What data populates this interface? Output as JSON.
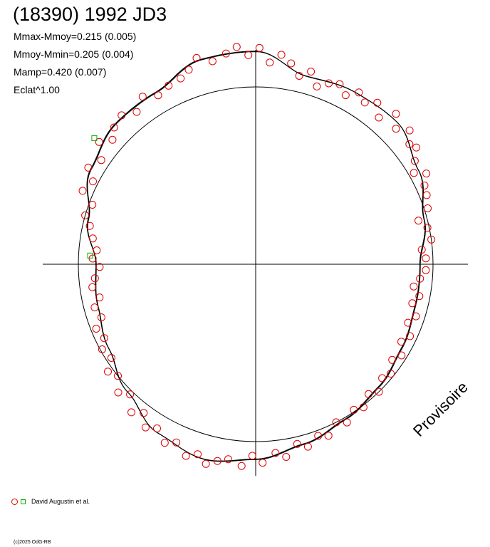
{
  "title": "(18390) 1992 JD3",
  "stats": {
    "line1": "Mmax-Mmoy=0.215 (0.005)",
    "line2": "Mmoy-Mmin=0.205 (0.004)",
    "line3": "Mamp=0.420 (0.007)",
    "line4": "Eclat^1.00"
  },
  "watermark": "Provisoire",
  "legend": {
    "label": "David Augustin et al."
  },
  "copyright": "(c)2025 OdG-RB",
  "colors": {
    "observation": "#e00000",
    "marker": "#00b000",
    "curve": "#000000"
  },
  "chart_data": {
    "type": "polar-lightcurve",
    "theta_unit": "degrees",
    "r_unit": "relative flux (reference circle = 1.0)",
    "reference_circle": 1.0,
    "fit_curve": [
      {
        "theta": 0,
        "r": 0.927
      },
      {
        "theta": 15,
        "r": 0.983
      },
      {
        "theta": 30,
        "r": 1.06
      },
      {
        "theta": 45,
        "r": 1.13
      },
      {
        "theta": 60,
        "r": 1.12
      },
      {
        "theta": 75,
        "r": 1.098
      },
      {
        "theta": 90,
        "r": 1.2
      },
      {
        "theta": 105,
        "r": 1.194
      },
      {
        "theta": 120,
        "r": 1.12
      },
      {
        "theta": 135,
        "r": 1.118
      },
      {
        "theta": 150,
        "r": 1.072
      },
      {
        "theta": 165,
        "r": 0.977
      },
      {
        "theta": 180,
        "r": 0.9
      },
      {
        "theta": 195,
        "r": 0.92
      },
      {
        "theta": 210,
        "r": 0.955
      },
      {
        "theta": 225,
        "r": 1.02
      },
      {
        "theta": 240,
        "r": 1.1
      },
      {
        "theta": 255,
        "r": 1.137
      },
      {
        "theta": 270,
        "r": 1.1
      },
      {
        "theta": 285,
        "r": 1.05
      },
      {
        "theta": 300,
        "r": 1.01
      },
      {
        "theta": 315,
        "r": 0.98
      },
      {
        "theta": 330,
        "r": 0.95
      },
      {
        "theta": 345,
        "r": 0.93
      },
      {
        "theta": 360,
        "r": 0.927
      }
    ],
    "series": [
      {
        "name": "David Augustin et al.",
        "marker": "circle",
        "points": [
          {
            "theta": 2,
            "r": 0.96
          },
          {
            "theta": 5,
            "r": 0.94
          },
          {
            "theta": 8,
            "r": 1.0
          },
          {
            "theta": 12,
            "r": 0.99
          },
          {
            "theta": 15,
            "r": 0.95
          },
          {
            "theta": 18,
            "r": 1.02
          },
          {
            "theta": 22,
            "r": 1.04
          },
          {
            "theta": 25,
            "r": 1.05
          },
          {
            "theta": 28,
            "r": 1.09
          },
          {
            "theta": 30,
            "r": 1.03
          },
          {
            "theta": 33,
            "r": 1.07
          },
          {
            "theta": 36,
            "r": 1.12
          },
          {
            "theta": 38,
            "r": 1.1
          },
          {
            "theta": 41,
            "r": 1.15
          },
          {
            "theta": 44,
            "r": 1.1
          },
          {
            "theta": 47,
            "r": 1.16
          },
          {
            "theta": 50,
            "r": 1.08
          },
          {
            "theta": 53,
            "r": 1.14
          },
          {
            "theta": 56,
            "r": 1.1
          },
          {
            "theta": 59,
            "r": 1.13
          },
          {
            "theta": 62,
            "r": 1.08
          },
          {
            "theta": 65,
            "r": 1.12
          },
          {
            "theta": 68,
            "r": 1.1
          },
          {
            "theta": 71,
            "r": 1.06
          },
          {
            "theta": 74,
            "r": 1.13
          },
          {
            "theta": 77,
            "r": 1.09
          },
          {
            "theta": 80,
            "r": 1.15
          },
          {
            "theta": 83,
            "r": 1.19
          },
          {
            "theta": 86,
            "r": 1.14
          },
          {
            "theta": 89,
            "r": 1.22
          },
          {
            "theta": 92,
            "r": 1.18
          },
          {
            "theta": 95,
            "r": 1.23
          },
          {
            "theta": 98,
            "r": 1.2
          },
          {
            "theta": 102,
            "r": 1.17
          },
          {
            "theta": 106,
            "r": 1.21
          },
          {
            "theta": 109,
            "r": 1.16
          },
          {
            "theta": 112,
            "r": 1.13
          },
          {
            "theta": 116,
            "r": 1.12
          },
          {
            "theta": 120,
            "r": 1.1
          },
          {
            "theta": 124,
            "r": 1.14
          },
          {
            "theta": 128,
            "r": 1.09
          },
          {
            "theta": 132,
            "r": 1.13
          },
          {
            "theta": 136,
            "r": 1.11
          },
          {
            "theta": 139,
            "r": 1.07
          },
          {
            "theta": 142,
            "r": 1.12
          },
          {
            "theta": 146,
            "r": 1.05
          },
          {
            "theta": 150,
            "r": 1.09
          },
          {
            "theta": 153,
            "r": 1.03
          },
          {
            "theta": 157,
            "r": 1.06
          },
          {
            "theta": 160,
            "r": 0.98
          },
          {
            "theta": 164,
            "r": 1.0
          },
          {
            "theta": 167,
            "r": 0.96
          },
          {
            "theta": 171,
            "r": 0.93
          },
          {
            "theta": 175,
            "r": 0.9
          },
          {
            "theta": 178,
            "r": 0.92
          },
          {
            "theta": 181,
            "r": 0.88
          },
          {
            "theta": 185,
            "r": 0.91
          },
          {
            "theta": 188,
            "r": 0.93
          },
          {
            "theta": 192,
            "r": 0.9
          },
          {
            "theta": 195,
            "r": 0.94
          },
          {
            "theta": 199,
            "r": 0.92
          },
          {
            "theta": 202,
            "r": 0.97
          },
          {
            "theta": 206,
            "r": 0.95
          },
          {
            "theta": 209,
            "r": 0.99
          },
          {
            "theta": 213,
            "r": 0.97
          },
          {
            "theta": 216,
            "r": 1.03
          },
          {
            "theta": 219,
            "r": 1.0
          },
          {
            "theta": 223,
            "r": 1.06
          },
          {
            "theta": 226,
            "r": 1.02
          },
          {
            "theta": 230,
            "r": 1.09
          },
          {
            "theta": 233,
            "r": 1.05
          },
          {
            "theta": 236,
            "r": 1.11
          },
          {
            "theta": 239,
            "r": 1.08
          },
          {
            "theta": 243,
            "r": 1.13
          },
          {
            "theta": 246,
            "r": 1.1
          },
          {
            "theta": 250,
            "r": 1.15
          },
          {
            "theta": 253,
            "r": 1.12
          },
          {
            "theta": 256,
            "r": 1.16
          },
          {
            "theta": 259,
            "r": 1.13
          },
          {
            "theta": 262,
            "r": 1.11
          },
          {
            "theta": 266,
            "r": 1.14
          },
          {
            "theta": 269,
            "r": 1.08
          },
          {
            "theta": 272,
            "r": 1.12
          },
          {
            "theta": 276,
            "r": 1.07
          },
          {
            "theta": 279,
            "r": 1.1
          },
          {
            "theta": 283,
            "r": 1.04
          },
          {
            "theta": 286,
            "r": 1.07
          },
          {
            "theta": 290,
            "r": 1.03
          },
          {
            "theta": 293,
            "r": 1.05
          },
          {
            "theta": 297,
            "r": 1.0
          },
          {
            "theta": 300,
            "r": 1.03
          },
          {
            "theta": 304,
            "r": 0.99
          },
          {
            "theta": 307,
            "r": 1.01
          },
          {
            "theta": 311,
            "r": 0.97
          },
          {
            "theta": 314,
            "r": 1.0
          },
          {
            "theta": 318,
            "r": 0.96
          },
          {
            "theta": 321,
            "r": 0.98
          },
          {
            "theta": 325,
            "r": 0.94
          },
          {
            "theta": 328,
            "r": 0.97
          },
          {
            "theta": 332,
            "r": 0.93
          },
          {
            "theta": 335,
            "r": 0.96
          },
          {
            "theta": 339,
            "r": 0.92
          },
          {
            "theta": 342,
            "r": 0.95
          },
          {
            "theta": 346,
            "r": 0.91
          },
          {
            "theta": 349,
            "r": 0.94
          },
          {
            "theta": 352,
            "r": 0.9
          },
          {
            "theta": 355,
            "r": 0.93
          },
          {
            "theta": 358,
            "r": 0.96
          }
        ]
      },
      {
        "name": "",
        "marker": "square",
        "points": [
          {
            "theta": 177,
            "r": 0.935
          },
          {
            "theta": 142,
            "r": 1.155
          }
        ]
      }
    ],
    "title": "(18390) 1992 JD3",
    "xlabel": "",
    "ylabel": "",
    "grid": false,
    "legend": "bottom-left"
  }
}
